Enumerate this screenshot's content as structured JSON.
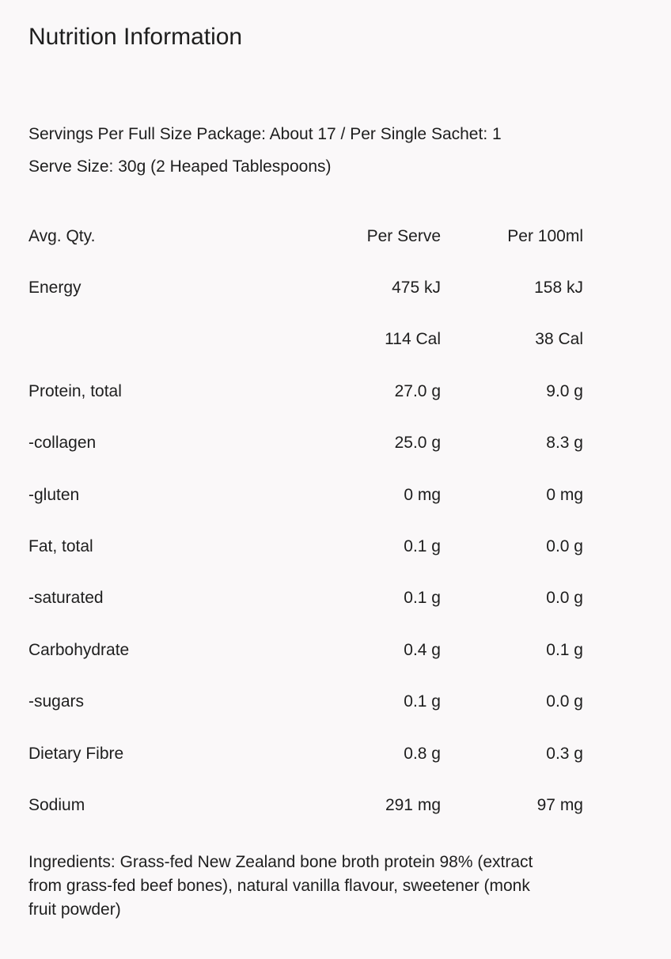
{
  "header": {
    "title": "Nutrition Information"
  },
  "servings": "Servings Per Full Size Package: About 17 / Per Single Sachet: 1",
  "serve_size": "Serve Size: 30g (2 Heaped Tablespoons)",
  "table": {
    "header": [
      "Avg. Qty.",
      "Per Serve",
      "Per 100ml"
    ],
    "rows": [
      [
        "Energy",
        "475 kJ",
        "158 kJ"
      ],
      [
        null,
        "114 Cal",
        "38 Cal"
      ],
      [
        "Protein, total",
        "27.0 g",
        "9.0 g"
      ],
      [
        "-collagen",
        "25.0 g",
        "8.3 g"
      ],
      [
        "-gluten",
        "0 mg",
        "0 mg"
      ],
      [
        "Fat, total",
        "0.1 g",
        "0.0 g"
      ],
      [
        "-saturated",
        "0.1 g",
        "0.0 g"
      ],
      [
        "Carbohydrate",
        "0.4 g",
        "0.1 g"
      ],
      [
        "-sugars",
        "0.1 g",
        "0.0 g"
      ],
      [
        "Dietary Fibre",
        "0.8 g",
        "0.3 g"
      ],
      [
        "Sodium",
        "291 mg",
        "97 mg"
      ]
    ]
  },
  "ingredients": "Ingredients: Grass-fed New Zealand bone broth protein 98% (extract from grass-fed beef bones), natural vanilla flavour, sweetener (monk fruit powder)"
}
